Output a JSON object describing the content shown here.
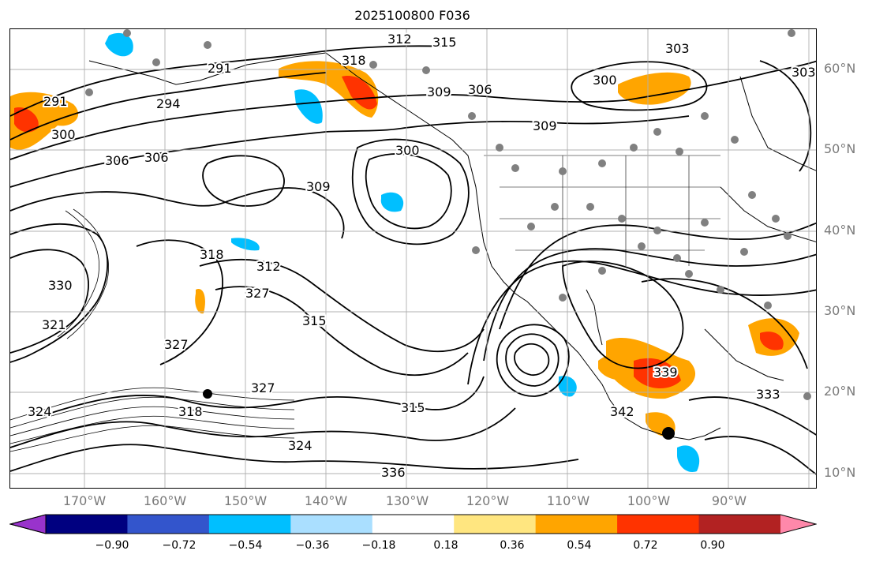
{
  "title": "2025100800 F036",
  "map": {
    "lat_labels": [
      "60°N",
      "50°N",
      "40°N",
      "30°N",
      "20°N",
      "10°N"
    ],
    "lon_labels": [
      "170°W",
      "160°W",
      "150°W",
      "140°W",
      "130°W",
      "120°W",
      "110°W",
      "100°W",
      "90°W"
    ],
    "grid": true,
    "contour_labels": [
      "291",
      "300",
      "306",
      "309",
      "303",
      "300",
      "306",
      "312",
      "315",
      "318",
      "309",
      "300",
      "306",
      "309",
      "318",
      "312",
      "327",
      "315",
      "321",
      "330",
      "327",
      "324",
      "318",
      "327",
      "315",
      "324",
      "336",
      "339",
      "333",
      "342",
      "303",
      "291",
      "294"
    ],
    "colors": {
      "contour": "#000000",
      "grid": "#b0b0b0",
      "axis_label": "#7a7a7a",
      "coast": "#000000",
      "station": "#808080"
    }
  },
  "colorbar": {
    "ticks": [
      "−0.90",
      "−0.72",
      "−0.54",
      "−0.36",
      "−0.18",
      "0.18",
      "0.36",
      "0.54",
      "0.72",
      "0.90"
    ],
    "colors": [
      "#9933cc",
      "#000080",
      "#3355cc",
      "#00bfff",
      "#aadfff",
      "#ffffff",
      "#ffe680",
      "#ffa500",
      "#ff3300",
      "#b22222",
      "#ff88aa"
    ]
  }
}
